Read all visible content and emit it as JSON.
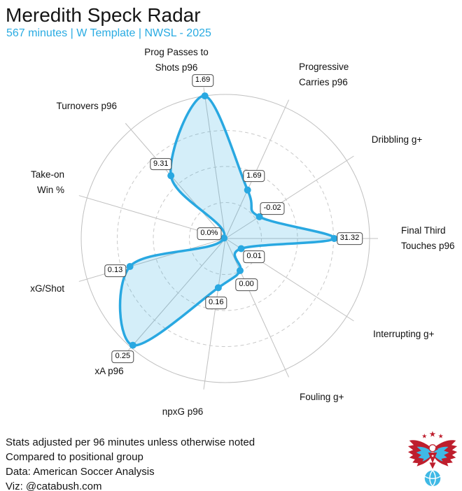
{
  "header": {
    "title": "Meredith Speck Radar",
    "subtitle": "567 minutes | W Template | NWSL - 2025"
  },
  "chart_data": {
    "type": "radar",
    "title": "Meredith Speck Radar",
    "subtitle": "567 minutes | W Template | NWSL - 2025",
    "axis_count": 11,
    "start_angle_deg": 0,
    "direction": "clockwise",
    "grid": {
      "rings": [
        0.25,
        0.5,
        0.75,
        1.0
      ],
      "dashed_inner_rings": true,
      "spokes": true
    },
    "axes": [
      {
        "label": [
          "Final Third",
          "Touches p96"
        ],
        "value": "31.32",
        "fraction": 0.755
      },
      {
        "label": [
          "Interrupting g+"
        ],
        "value": "0.01",
        "fraction": 0.13
      },
      {
        "label": [
          "Fouling g+"
        ],
        "value": "0.00",
        "fraction": 0.245
      },
      {
        "label": [
          "npxG p96"
        ],
        "value": "0.16",
        "fraction": 0.345
      },
      {
        "label": [
          "xA p96"
        ],
        "value": "0.25",
        "fraction": 0.98
      },
      {
        "label": [
          "xG/Shot"
        ],
        "value": "0.13",
        "fraction": 0.69
      },
      {
        "label": [
          "Take-on",
          "Win %"
        ],
        "value": "0.0%",
        "fraction": 0.01
      },
      {
        "label": [
          "Turnovers p96"
        ],
        "value": "9.31",
        "fraction": 0.577
      },
      {
        "label": [
          "Prog Passes to",
          "Shots p96"
        ],
        "value": "1.69",
        "fraction": 1.0
      },
      {
        "label": [
          "Progressive",
          "Carries p96"
        ],
        "value": "1.69",
        "fraction": 0.37
      },
      {
        "label": [
          "Dribbling g+"
        ],
        "value": "-0.02",
        "fraction": 0.28
      }
    ],
    "colors": {
      "line": "#29A8E1",
      "fill": "rgba(41,168,225,0.20)",
      "grid": "#c0c0c0",
      "dashed_ring": "#c9c9c9",
      "accent": "#29ABE2",
      "logo_red": "#BE1E2D",
      "logo_blue": "#3FB9E5"
    }
  },
  "footer": {
    "lines": [
      "Stats adjusted per 96 minutes unless otherwise noted",
      "Compared to positional group",
      "Data: American Soccer Analysis",
      "Viz: @catabush.com"
    ]
  }
}
